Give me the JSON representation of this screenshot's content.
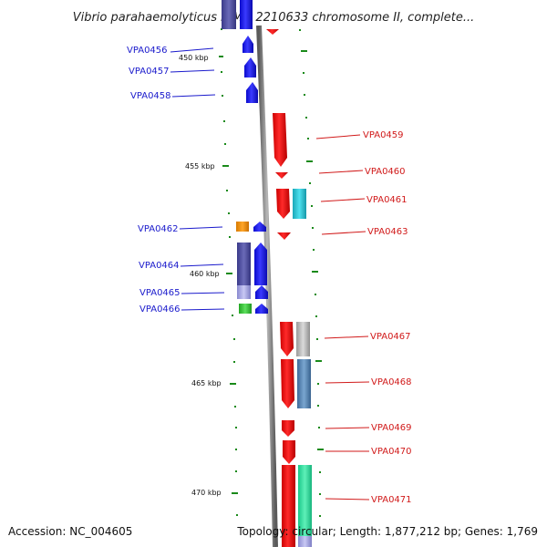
{
  "title": "Vibrio parahaemolyticus RIMD 2210633 chromosome II, complete...",
  "footer": {
    "accession": "Accession: NC_004605",
    "topology": "Topology: circular; Length: 1,877,212 bp; Genes: 1,769"
  },
  "scale_labels": [
    "450 kbp",
    "455 kbp",
    "460 kbp",
    "465 kbp",
    "470 kbp"
  ],
  "genes": [
    {
      "name": "VPA0456",
      "side": "left"
    },
    {
      "name": "VPA0457",
      "side": "left"
    },
    {
      "name": "VPA0458",
      "side": "left"
    },
    {
      "name": "VPA0459",
      "side": "right"
    },
    {
      "name": "VPA0460",
      "side": "right"
    },
    {
      "name": "VPA0461",
      "side": "right"
    },
    {
      "name": "VPA0462",
      "side": "left"
    },
    {
      "name": "VPA0463",
      "side": "right"
    },
    {
      "name": "VPA0464",
      "side": "left"
    },
    {
      "name": "VPA0465",
      "side": "left"
    },
    {
      "name": "VPA0466",
      "side": "left"
    },
    {
      "name": "VPA0467",
      "side": "right"
    },
    {
      "name": "VPA0468",
      "side": "right"
    },
    {
      "name": "VPA0469",
      "side": "right"
    },
    {
      "name": "VPA0470",
      "side": "right"
    },
    {
      "name": "VPA0471",
      "side": "right"
    }
  ],
  "colors": {
    "forward_strand": "#1a1aee",
    "reverse_strand": "#ee1111",
    "left_label": "#1a1acc",
    "right_label": "#d11a1a",
    "tick": "#1a8a1a",
    "backbone": "#7a7a7a"
  }
}
